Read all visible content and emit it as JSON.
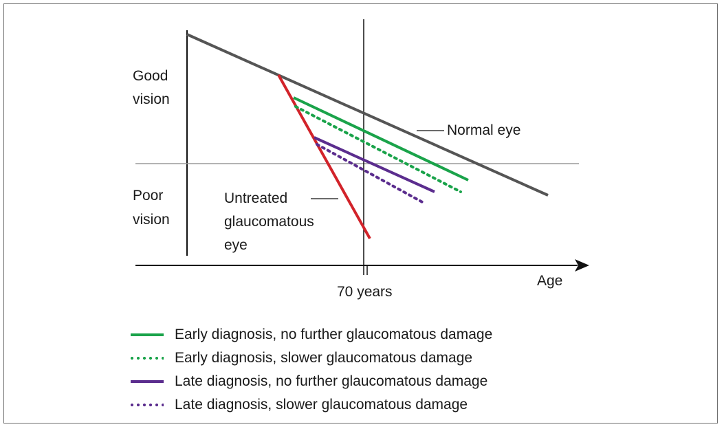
{
  "labels": {
    "good_vision": [
      "Good",
      "vision"
    ],
    "poor_vision": [
      "Poor",
      "vision"
    ],
    "normal_eye": "Normal eye",
    "untreated": [
      "Untreated",
      "glaucomatous",
      "eye"
    ],
    "age": "Age",
    "seventy_years": "70 years"
  },
  "colors": {
    "normal": "#555555",
    "untreated": "#d2232a",
    "early": "#1aa34a",
    "late": "#5b2d8e",
    "axis": "#111111",
    "threshold": "#9a9a9a"
  },
  "legend": [
    {
      "text": "Early diagnosis, no further glaucomatous damage",
      "color": "#1aa34a",
      "style": "solid"
    },
    {
      "text": "Early diagnosis, slower glaucomatous damage",
      "color": "#1aa34a",
      "style": "dotted"
    },
    {
      "text": "Late diagnosis, no further glaucomatous damage",
      "color": "#5b2d8e",
      "style": "solid"
    },
    {
      "text": "Late diagnosis, slower glaucomatous damage",
      "color": "#5b2d8e",
      "style": "dotted"
    }
  ]
}
